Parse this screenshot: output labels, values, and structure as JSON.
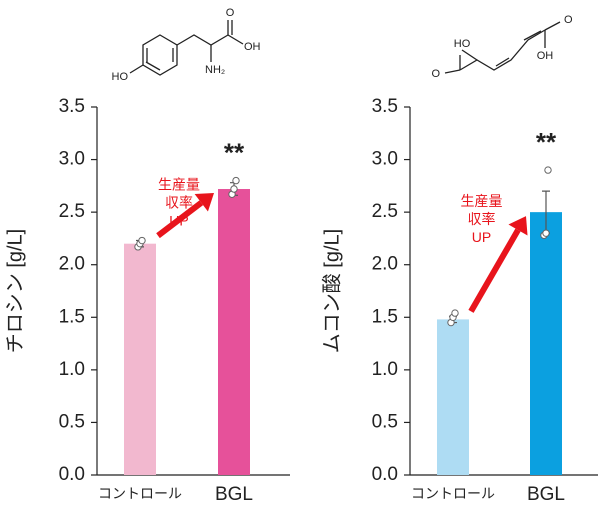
{
  "chart_data": [
    {
      "type": "bar",
      "y_label": "チロシン [g/L]",
      "categories": [
        "コントロール",
        "BGL"
      ],
      "values": [
        2.2,
        2.72
      ],
      "errors": [
        0.03,
        0.06
      ],
      "points": [
        [
          2.17,
          2.2,
          2.23
        ],
        [
          2.67,
          2.72,
          2.8
        ]
      ],
      "colors": [
        "#f2b8cf",
        "#e6519a"
      ],
      "ylim": [
        0,
        3.5
      ],
      "yticks": [
        {
          "value": 0,
          "label": "0.0"
        },
        0.5,
        {
          "value": 1,
          "label": "1.0"
        },
        1.5,
        {
          "value": 2,
          "label": "2.0"
        },
        2.5,
        {
          "value": 3,
          "label": "3.0"
        },
        3.5
      ],
      "significance": "**",
      "annotation": [
        "生産量",
        "収率",
        "UP"
      ],
      "structure_labels": [
        "O",
        "OH",
        "HO",
        "NH₂"
      ]
    },
    {
      "type": "bar",
      "y_label": "ムコン酸 [g/L]",
      "categories": [
        "コントロール",
        "BGL"
      ],
      "values": [
        1.48,
        2.5
      ],
      "errors": [
        0.03,
        0.2
      ],
      "points": [
        [
          1.45,
          1.5,
          1.54
        ],
        [
          2.28,
          2.3,
          2.9
        ]
      ],
      "colors": [
        "#aedcf3",
        "#0ba0e0"
      ],
      "ylim": [
        0,
        3.5
      ],
      "yticks": [
        {
          "value": 0,
          "label": "0.0"
        },
        0.5,
        {
          "value": 1,
          "label": "1.0"
        },
        1.5,
        {
          "value": 2,
          "label": "2.0"
        },
        2.5,
        {
          "value": 3,
          "label": "3.0"
        },
        3.5
      ],
      "significance": "**",
      "annotation": [
        "生産量",
        "収率",
        "UP"
      ],
      "structure_labels": [
        "O",
        "HO",
        "OH",
        "O"
      ]
    }
  ]
}
